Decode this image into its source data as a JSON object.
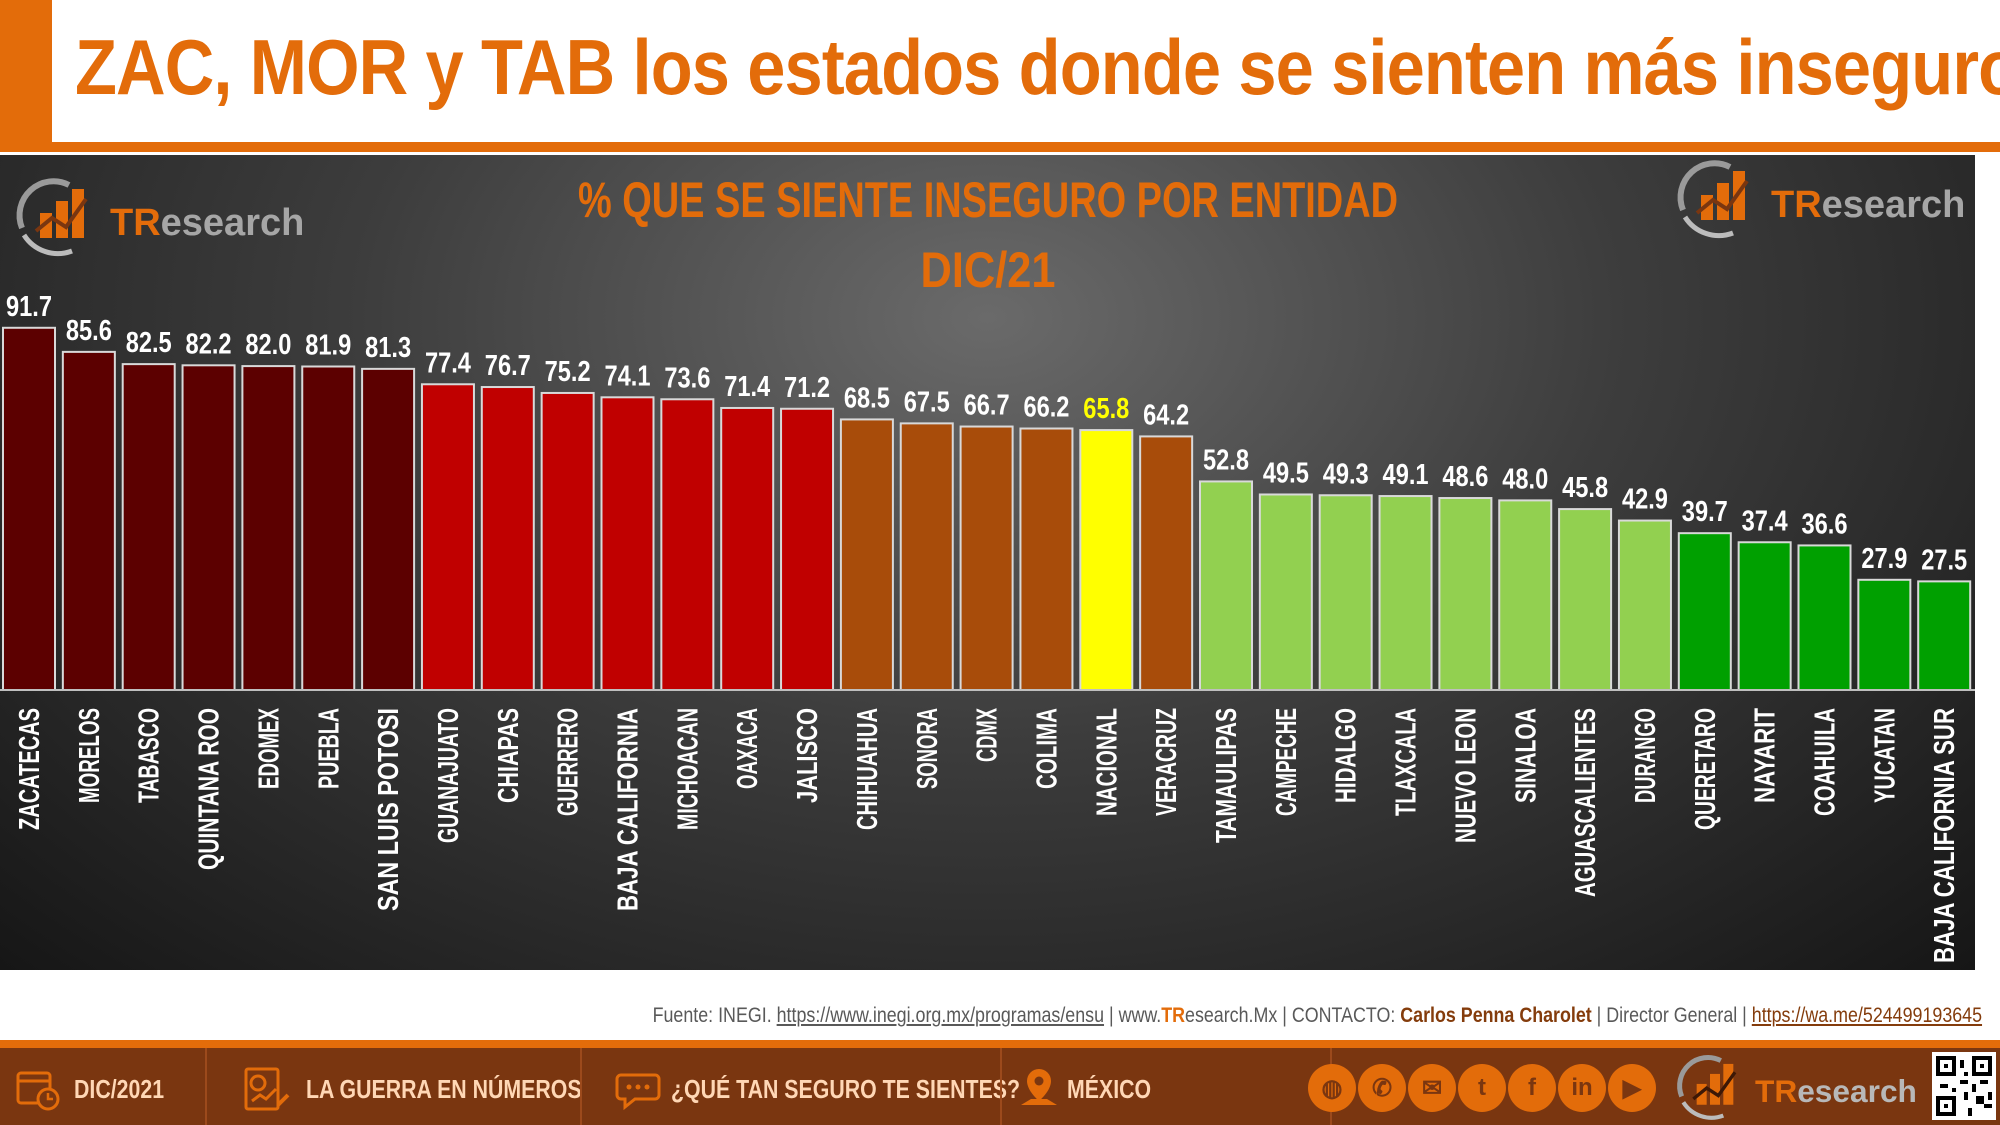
{
  "header": {
    "headline": "ZAC, MOR y TAB los estados donde se sienten más inseguros."
  },
  "logo": {
    "tr": "TR",
    "rest": "esearch"
  },
  "chart_data": {
    "type": "bar",
    "title": "% QUE SE SIENTE INSEGURO POR ENTIDAD",
    "subtitle": "DIC/21",
    "categories": [
      "ZACATECAS",
      "MORELOS",
      "TABASCO",
      "QUINTANA ROO",
      "EDOMEX",
      "PUEBLA",
      "SAN LUIS POTOSI",
      "GUANAJUATO",
      "CHIAPAS",
      "GUERRERO",
      "BAJA CALIFORNIA",
      "MICHOACAN",
      "OAXACA",
      "JALISCO",
      "CHIHUAHUA",
      "SONORA",
      "CDMX",
      "COLIMA",
      "NACIONAL",
      "VERACRUZ",
      "TAMAULIPAS",
      "CAMPECHE",
      "HIDALGO",
      "TLAXCALA",
      "NUEVO LEON",
      "SINALOA",
      "AGUASCALIENTES",
      "DURANGO",
      "QUERETARO",
      "NAYARIT",
      "COAHUILA",
      "YUCATAN",
      "BAJA CALIFORNIA SUR"
    ],
    "values": [
      91.7,
      85.6,
      82.5,
      82.2,
      82.0,
      81.9,
      81.3,
      77.4,
      76.7,
      75.2,
      74.1,
      73.6,
      71.4,
      71.2,
      68.5,
      67.5,
      66.7,
      66.2,
      65.8,
      64.2,
      52.8,
      49.5,
      49.3,
      49.1,
      48.6,
      48.0,
      45.8,
      42.9,
      39.7,
      37.4,
      36.6,
      27.9,
      27.5
    ],
    "value_labels": [
      "91.7",
      "85.6",
      "82.5",
      "82.2",
      "82.0",
      "81.9",
      "81.3",
      "77.4",
      "76.7",
      "75.2",
      "74.1",
      "73.6",
      "71.4",
      "71.2",
      "68.5",
      "67.5",
      "66.7",
      "66.2",
      "65.8",
      "64.2",
      "52.8",
      "49.5",
      "49.3",
      "49.1",
      "48.6",
      "48.0",
      "45.8",
      "42.9",
      "39.7",
      "37.4",
      "36.6",
      "27.9",
      "27.5"
    ],
    "colors": [
      "#5c0000",
      "#5c0000",
      "#5c0000",
      "#5c0000",
      "#5c0000",
      "#5c0000",
      "#5c0000",
      "#c00000",
      "#c00000",
      "#c00000",
      "#c00000",
      "#c00000",
      "#c00000",
      "#c00000",
      "#a84c0a",
      "#a84c0a",
      "#a84c0a",
      "#a84c0a",
      "#ffff00",
      "#a84c0a",
      "#92d050",
      "#92d050",
      "#92d050",
      "#92d050",
      "#92d050",
      "#92d050",
      "#92d050",
      "#92d050",
      "#00a000",
      "#00a000",
      "#00a000",
      "#00a000",
      "#00a000"
    ],
    "highlight_label_color": "#ffff00",
    "highlight_index": 18,
    "ylim": [
      0,
      100
    ],
    "grid": false
  },
  "source": {
    "prefix": "Fuente: INEGI. ",
    "url": "https://www.inegi.org.mx/programas/ensu",
    "sep1": " | www.",
    "site_brand": "TR",
    "site_rest": "esearch.Mx",
    "sep2": " | ",
    "contact_label": "CONTACTO: ",
    "contact_name": "Carlos Penna Charolet",
    "role": " | Director General | ",
    "wa": "https://wa.me/524499193645"
  },
  "footer": {
    "items": [
      {
        "label": "DIC/2021",
        "icon": "calendar-icon"
      },
      {
        "label": "LA GUERRA EN NÚMEROS",
        "icon": "report-chart-icon"
      },
      {
        "label": "¿QUÉ TAN SEGURO TE SIENTES?",
        "icon": "speech-bubble-icon"
      },
      {
        "label": "MÉXICO",
        "icon": "map-pin-icon"
      }
    ],
    "social": [
      "globe-icon",
      "phone-icon",
      "mail-icon",
      "twitter-icon",
      "facebook-icon",
      "linkedin-icon",
      "youtube-icon"
    ],
    "social_glyphs": [
      "◍",
      "✆",
      "✉",
      "t",
      "f",
      "in",
      "▶"
    ]
  },
  "colors": {
    "accent": "#e36c0a",
    "footer_bg": "#7a3610"
  }
}
